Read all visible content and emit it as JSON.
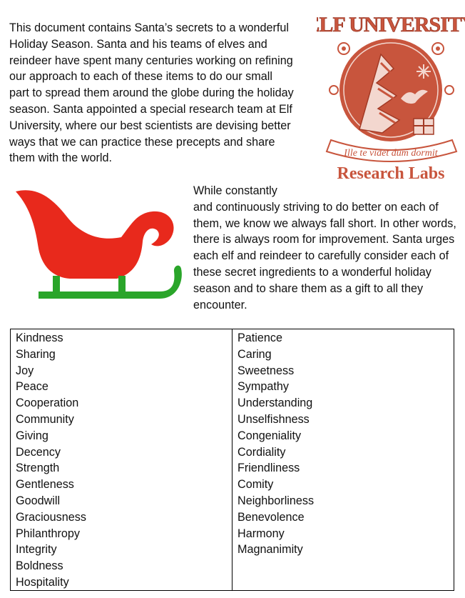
{
  "intro": {
    "text": "This document contains Santa’s secrets to a wonderful Holiday Season.  Santa and his teams of elves and reindeer have spent many centuries working on refining our approach to each of these items to do our small part to spread them around the globe during the holiday season.  Santa appointed a special research team at Elf University, where our best scientists are devising better ways that we can practice these precepts and share them with the world."
  },
  "logo": {
    "top_text": "ELF UNIVERSITY",
    "motto": "Ille te videt dum dormit",
    "bottom_text": "Research Labs",
    "color": "#c8553d"
  },
  "sleigh": {
    "icon": "sleigh-icon",
    "body_color": "#e8291c",
    "runner_color": "#2aa52a"
  },
  "para2": {
    "lead": "While constantly",
    "text": "and continuously striving to do better on each of them, we know we always fall short. In other words, there is always room for improvement. Santa urges each elf and reindeer to carefully consider each of these secret ingredients to a wonderful holiday season and to share them as a gift to all they encounter."
  },
  "ingredients": {
    "left": [
      "Kindness",
      "Sharing",
      "Joy",
      "Peace",
      "Cooperation",
      "Community",
      "Giving",
      "Decency",
      "Strength",
      "Gentleness",
      "Goodwill",
      "Graciousness",
      "Philanthropy",
      "Integrity",
      "Boldness",
      "Hospitality"
    ],
    "right": [
      "Patience",
      "Caring",
      "Sweetness",
      "Sympathy",
      "Understanding",
      "Unselfishness",
      "Congeniality",
      "Cordiality",
      "Friendliness",
      "Comity",
      "Neighborliness",
      "Benevolence",
      "Harmony",
      "Magnanimity"
    ]
  }
}
